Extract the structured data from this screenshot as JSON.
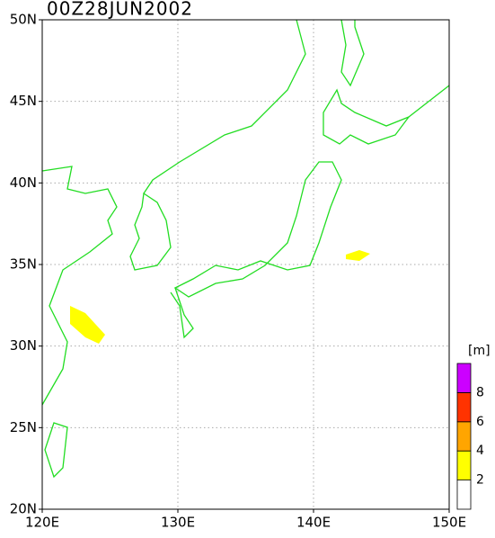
{
  "map": {
    "title": "00Z28JUN2002",
    "xlim": [
      120,
      150
    ],
    "ylim": [
      20,
      50
    ],
    "xticks": [
      {
        "value": 120,
        "label": "120E"
      },
      {
        "value": 130,
        "label": "130E"
      },
      {
        "value": 140,
        "label": "140E"
      },
      {
        "value": 150,
        "label": "150E"
      }
    ],
    "yticks": [
      {
        "value": 20,
        "label": "20N"
      },
      {
        "value": 25,
        "label": "25N"
      },
      {
        "value": 30,
        "label": "30N"
      },
      {
        "value": 35,
        "label": "35N"
      },
      {
        "value": 40,
        "label": "40N"
      },
      {
        "value": 45,
        "label": "45N"
      },
      {
        "value": 50,
        "label": "50N"
      }
    ],
    "grid": true,
    "colorbar": {
      "unit": "[m]",
      "levels": [
        2,
        4,
        6,
        8
      ],
      "colors": [
        "#ffffff",
        "#ffff00",
        "#ffa500",
        "#ff3300",
        "#cc00ff"
      ]
    }
  }
}
